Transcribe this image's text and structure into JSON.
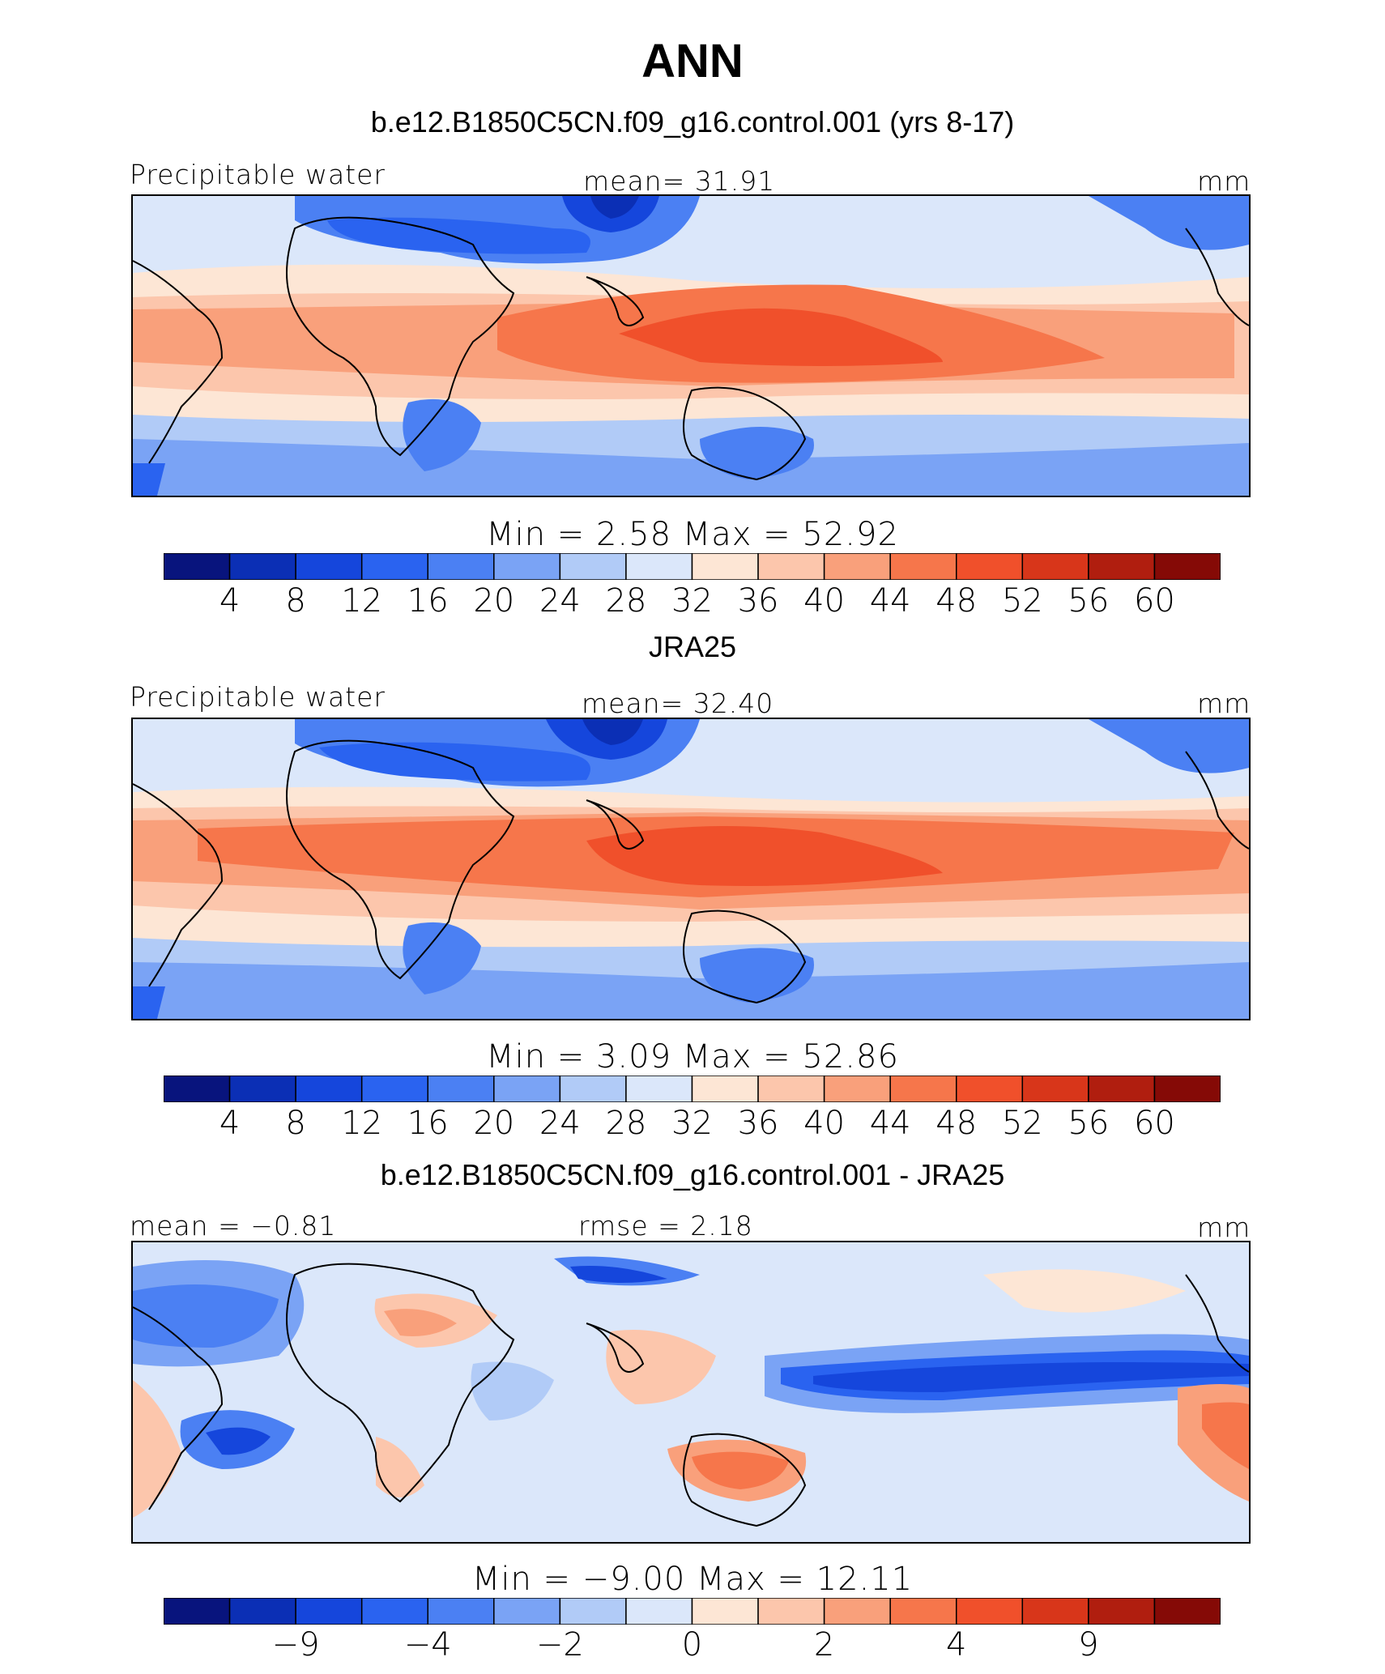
{
  "figure": {
    "title": "ANN"
  },
  "chart_data": [
    {
      "type": "heatmap",
      "title": "b.e12.B1850C5CN.f09_g16.control.001 (yrs 8-17)",
      "left_label": "Precipitable water",
      "center_label": "mean=   31.91",
      "right_label": "mm",
      "min_max_label": "Min  =     2.58  Max  =    52.92",
      "stats": {
        "mean": 31.91,
        "min": 2.58,
        "max": 52.92
      },
      "colorbar": {
        "colors": [
          "#08147d",
          "#0b2fb5",
          "#1546dc",
          "#2a63f0",
          "#4b80f3",
          "#7aa3f5",
          "#b1cbf7",
          "#dbe7fa",
          "#fde6d5",
          "#fcc6ac",
          "#f9a07b",
          "#f6764b",
          "#f0502b",
          "#d8361a",
          "#b01e0f",
          "#850a06"
        ],
        "tick_labels": [
          "4",
          "8",
          "12",
          "16",
          "20",
          "24",
          "28",
          "32",
          "36",
          "40",
          "44",
          "48",
          "52",
          "56",
          "60"
        ]
      }
    },
    {
      "type": "heatmap",
      "title": "JRA25",
      "left_label": "Precipitable water",
      "center_label": "mean=   32.40",
      "right_label": "mm",
      "min_max_label": "Min  =     3.09  Max  =    52.86",
      "stats": {
        "mean": 32.4,
        "min": 3.09,
        "max": 52.86
      },
      "colorbar": {
        "colors": [
          "#08147d",
          "#0b2fb5",
          "#1546dc",
          "#2a63f0",
          "#4b80f3",
          "#7aa3f5",
          "#b1cbf7",
          "#dbe7fa",
          "#fde6d5",
          "#fcc6ac",
          "#f9a07b",
          "#f6764b",
          "#f0502b",
          "#d8361a",
          "#b01e0f",
          "#850a06"
        ],
        "tick_labels": [
          "4",
          "8",
          "12",
          "16",
          "20",
          "24",
          "28",
          "32",
          "36",
          "40",
          "44",
          "48",
          "52",
          "56",
          "60"
        ]
      }
    },
    {
      "type": "heatmap",
      "title": "b.e12.B1850C5CN.f09_g16.control.001 - JRA25",
      "left_label": "mean =   −0.81",
      "center_label": "rmse =     2.18",
      "right_label": "mm",
      "min_max_label": "Min  =   −9.00  Max  =    12.11",
      "stats": {
        "mean": -0.81,
        "rmse": 2.18,
        "min": -9.0,
        "max": 12.11
      },
      "colorbar": {
        "colors": [
          "#08147d",
          "#0b2fb5",
          "#1546dc",
          "#2a63f0",
          "#4b80f3",
          "#7aa3f5",
          "#b1cbf7",
          "#dbe7fa",
          "#fde6d5",
          "#fcc6ac",
          "#f9a07b",
          "#f6764b",
          "#f0502b",
          "#d8361a",
          "#b01e0f",
          "#850a06"
        ],
        "tick_labels": [
          "−9",
          "−4",
          "−2",
          "0",
          "2",
          "4",
          "9"
        ],
        "tick_values": [
          -9,
          -4,
          -2,
          0,
          2,
          4,
          9
        ],
        "bounds": [
          -15,
          -9,
          -6,
          -4,
          -3,
          -2,
          -1,
          0,
          1,
          2,
          3,
          4,
          6,
          9,
          15
        ]
      }
    }
  ]
}
